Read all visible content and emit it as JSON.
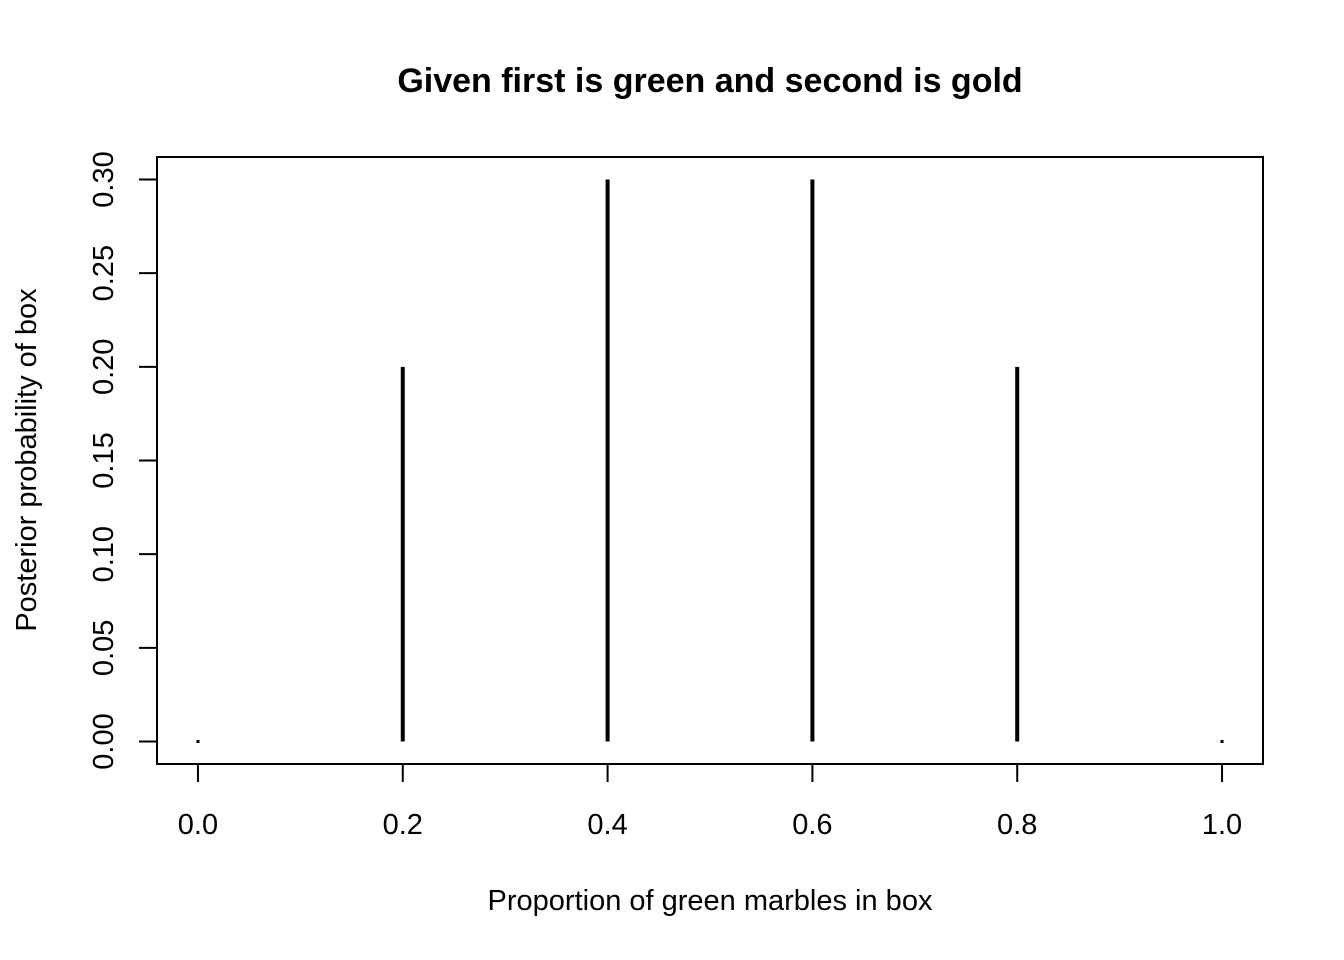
{
  "chart_data": {
    "type": "bar",
    "title": "Given first is green and second is gold",
    "xlabel": "Proportion of green marbles in box",
    "ylabel": "Posterior probability of box",
    "x": [
      0.0,
      0.2,
      0.4,
      0.6,
      0.8,
      1.0
    ],
    "values": [
      0.0,
      0.2,
      0.3,
      0.3,
      0.2,
      0.0
    ],
    "xlim": [
      -0.04,
      1.04
    ],
    "ylim": [
      -0.012,
      0.312
    ],
    "x_ticks": [
      "0.0",
      "0.2",
      "0.4",
      "0.6",
      "0.8",
      "1.0"
    ],
    "y_ticks": [
      "0.00",
      "0.05",
      "0.10",
      "0.15",
      "0.20",
      "0.25",
      "0.30"
    ],
    "grid": false,
    "color": "#000000"
  }
}
